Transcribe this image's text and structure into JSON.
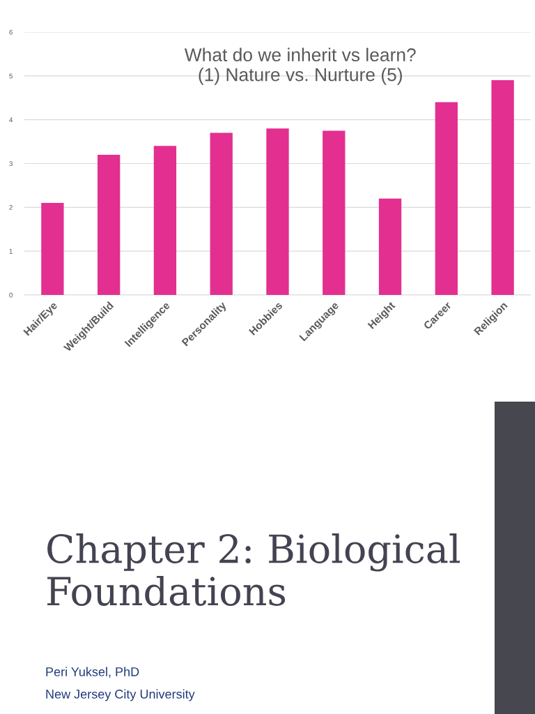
{
  "chart_data": {
    "type": "bar",
    "title": "What do we inherit vs learn?\n(1) Nature vs. Nurture (5)",
    "categories": [
      "Hair/Eye",
      "Weight/Build",
      "Intelligence",
      "Personality",
      "Hobbies",
      "Language",
      "Height",
      "Career",
      "Religion"
    ],
    "values": [
      2.1,
      3.2,
      3.4,
      3.7,
      3.8,
      3.75,
      2.2,
      4.4,
      4.9
    ],
    "color": "#e32f90",
    "ylim": [
      0,
      6
    ],
    "yticks": [
      0,
      1,
      2,
      3,
      4,
      5,
      6
    ],
    "grid": "y",
    "legend": false,
    "annotations": [
      "Chapter 2: Biological\nFoundations",
      "Peri Yuksel, PhD",
      "New Jersey City University"
    ]
  }
}
